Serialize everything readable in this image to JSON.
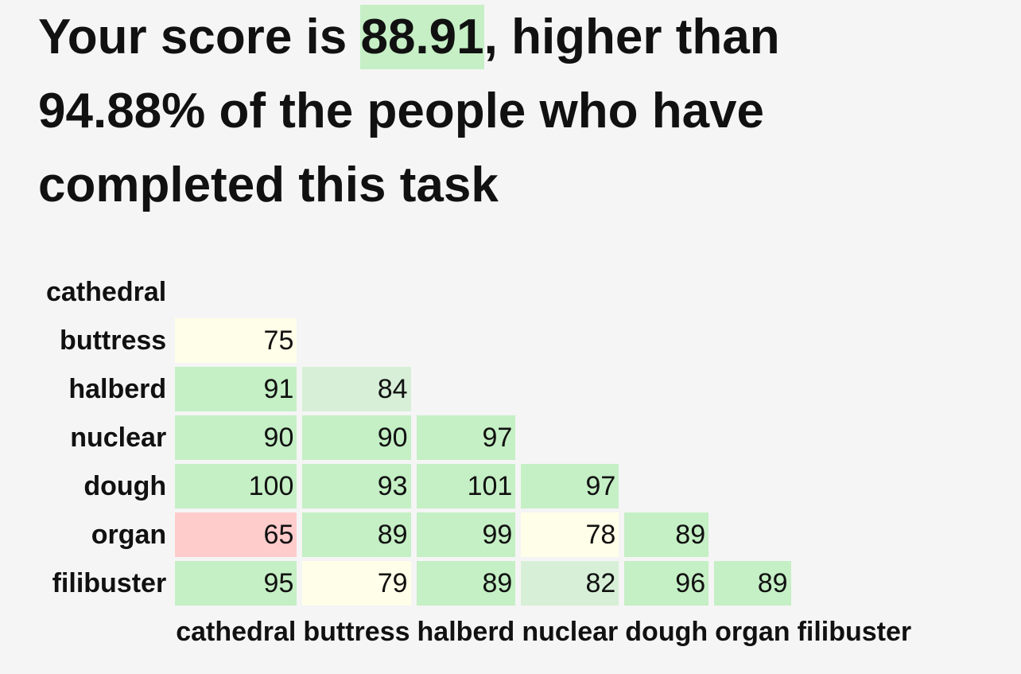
{
  "header": {
    "prefix": "Your score is",
    "score": "88.91",
    "suffix": ", higher than 94.88% of the people who have completed this task"
  },
  "table": {
    "row_labels": [
      "cathedral",
      "buttress",
      "halberd",
      "nuclear",
      "dough",
      "organ",
      "filibuster"
    ],
    "column_labels": [
      "cathedral",
      "buttress",
      "halberd",
      "nuclear",
      "dough",
      "organ",
      "filibuster"
    ],
    "cells": [
      [],
      [
        75
      ],
      [
        91,
        84
      ],
      [
        90,
        90,
        97
      ],
      [
        100,
        93,
        101,
        97
      ],
      [
        65,
        89,
        99,
        78,
        89
      ],
      [
        95,
        79,
        89,
        82,
        96,
        89
      ]
    ],
    "colors": [
      [],
      [
        "#fffee8"
      ],
      [
        "#c5efc5",
        "#d7efd7"
      ],
      [
        "#c5efc5",
        "#c5efc5",
        "#c5efc5"
      ],
      [
        "#c5efc5",
        "#c5efc5",
        "#c5efc5",
        "#c5efc5"
      ],
      [
        "#ffcccc",
        "#c5efc5",
        "#c5efc5",
        "#fffee8",
        "#c5efc5"
      ],
      [
        "#c5efc5",
        "#fffee8",
        "#c5efc5",
        "#d7efd7",
        "#c5efc5",
        "#c5efc5"
      ]
    ]
  }
}
